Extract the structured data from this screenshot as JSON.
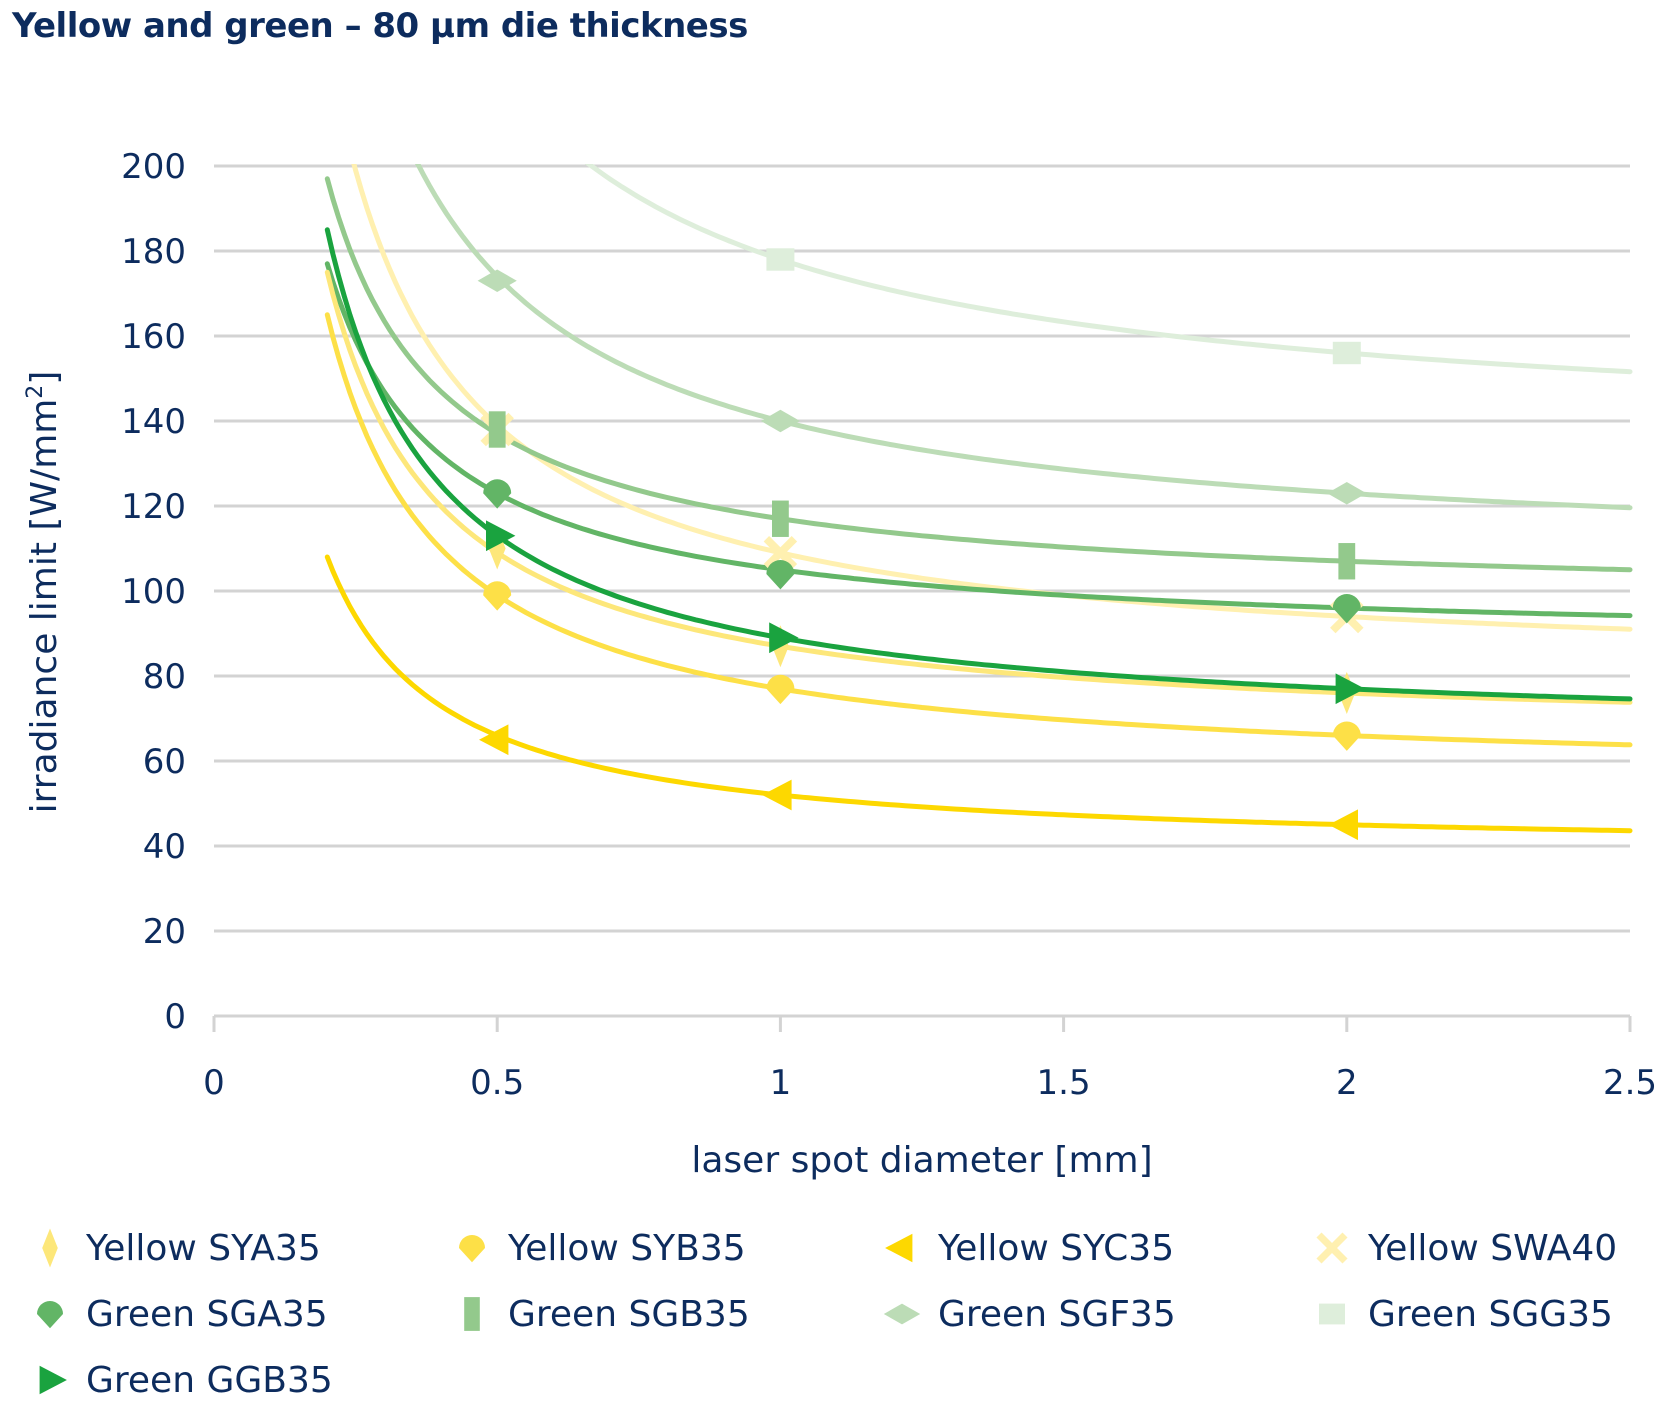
{
  "chart_data": {
    "type": "line",
    "title": "Yellow and green – 80 µm die thickness",
    "xlabel": "laser spot diameter [mm]",
    "ylabel": "irradiance limit [W/mm²]",
    "ylabel_base": "irradiance limit [W/mm",
    "ylabel_sup": "2",
    "ylabel_end": "]",
    "xlim": [
      0,
      2.5
    ],
    "ylim": [
      0,
      200
    ],
    "xticks": [
      0,
      0.5,
      1,
      1.5,
      2,
      2.5
    ],
    "xtick_labels": [
      "0",
      "0.5",
      "1",
      "1.5",
      "2",
      "2.5"
    ],
    "yticks": [
      0,
      20,
      40,
      60,
      80,
      100,
      120,
      140,
      160,
      180,
      200
    ],
    "ytick_labels": [
      "0",
      "20",
      "40",
      "60",
      "80",
      "100",
      "120",
      "140",
      "160",
      "180",
      "200"
    ],
    "grid": "horizontal",
    "legend_position": "bottom",
    "series": [
      {
        "name": "Yellow SYA35",
        "marker": "diamond-tall",
        "color": "#fde77a",
        "curve": {
          "form": "a+b/x",
          "a": 65,
          "b": 22,
          "x_start": 0.2
        },
        "points": [
          {
            "x": 0.5,
            "y": 110
          },
          {
            "x": 1,
            "y": 87
          },
          {
            "x": 2,
            "y": 76
          }
        ]
      },
      {
        "name": "Yellow SYB35",
        "marker": "drop",
        "color": "#fde047",
        "curve": {
          "form": "a+b/x",
          "a": 55,
          "b": 22,
          "x_start": 0.2
        },
        "points": [
          {
            "x": 0.5,
            "y": 99
          },
          {
            "x": 1,
            "y": 77
          },
          {
            "x": 2,
            "y": 66
          }
        ]
      },
      {
        "name": "Yellow SYC35",
        "marker": "triangle-left",
        "color": "#fdd800",
        "curve": {
          "form": "a+b/x",
          "a": 38,
          "b": 14,
          "x_start": 0.2
        },
        "points": [
          {
            "x": 0.5,
            "y": 65
          },
          {
            "x": 1,
            "y": 52
          },
          {
            "x": 2,
            "y": 45
          }
        ]
      },
      {
        "name": "Yellow SWA40",
        "marker": "x",
        "color": "#fff0b0",
        "curve": {
          "form": "a+b/x",
          "a": 79,
          "b": 30,
          "x_start": 0.2
        },
        "points": [
          {
            "x": 0.5,
            "y": 138
          },
          {
            "x": 1,
            "y": 109
          },
          {
            "x": 2,
            "y": 94
          }
        ]
      },
      {
        "name": "Green SGA35",
        "marker": "drop",
        "color": "#62b566",
        "curve": {
          "form": "a+b/x",
          "a": 87,
          "b": 18,
          "x_start": 0.2
        },
        "points": [
          {
            "x": 0.5,
            "y": 123
          },
          {
            "x": 1,
            "y": 104
          },
          {
            "x": 2,
            "y": 96
          }
        ]
      },
      {
        "name": "Green SGB35",
        "marker": "rect-tall",
        "color": "#93c98c",
        "curve": {
          "form": "a+b/x",
          "a": 97,
          "b": 20,
          "x_start": 0.2
        },
        "points": [
          {
            "x": 0.5,
            "y": 138
          },
          {
            "x": 1,
            "y": 117
          },
          {
            "x": 2,
            "y": 107
          }
        ]
      },
      {
        "name": "Green SGF35",
        "marker": "diamond-wide",
        "color": "#bcdcb6",
        "curve": {
          "form": "a+b/x",
          "a": 106,
          "b": 34,
          "x_start": 0.2
        },
        "points": [
          {
            "x": 0.5,
            "y": 173
          },
          {
            "x": 1,
            "y": 140
          },
          {
            "x": 2,
            "y": 123
          }
        ]
      },
      {
        "name": "Green SGG35",
        "marker": "square",
        "color": "#deeedb",
        "curve": {
          "form": "a+b/x",
          "a": 134,
          "b": 44,
          "x_start": 0.2
        },
        "points": [
          {
            "x": 1,
            "y": 178
          },
          {
            "x": 2,
            "y": 156
          }
        ]
      },
      {
        "name": "Green GGB35",
        "marker": "triangle-right",
        "color": "#1aa33f",
        "curve": {
          "form": "a+b/x",
          "a": 65,
          "b": 24,
          "x_start": 0.2
        },
        "points": [
          {
            "x": 0.5,
            "y": 113
          },
          {
            "x": 1,
            "y": 89
          },
          {
            "x": 2,
            "y": 77
          }
        ]
      }
    ]
  },
  "colors": {
    "text": "#0d2c5e",
    "grid": "#d3d3d3"
  }
}
